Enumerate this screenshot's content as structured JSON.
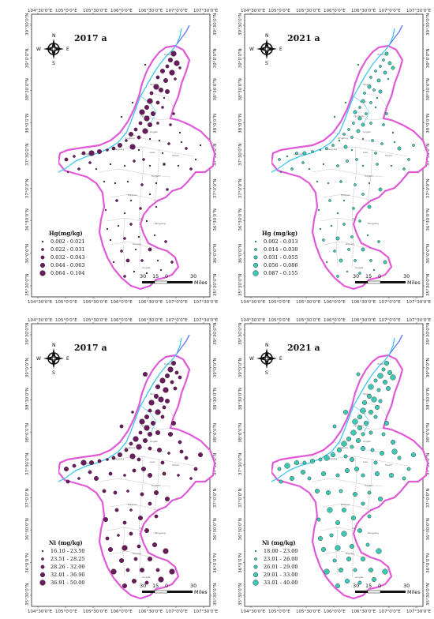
{
  "colors": {
    "y2017": "#6b1a5e",
    "y2021": "#3ec9b4",
    "outline": "#e05ad8",
    "river": "#3fc6f0",
    "county": "#888888"
  },
  "axes": {
    "top_lon_a": [
      "104°30'0\"E",
      "105°0'0\"E",
      "105°30'0\"E",
      "106°0'0\"E",
      "106°30'0\"E",
      "107°0'0\"E",
      "107°30'0\"E"
    ],
    "top_lon_b": [
      "104°30'0\"E",
      "105°0'0\"E",
      "105°30'0\"E",
      "106°0'0\"E",
      "106°30'0\"E",
      "107°0'0\"E",
      "107°30'0\"E"
    ],
    "lat": [
      "39°30'0\"N",
      "39°0'0\"N",
      "38°30'0\"N",
      "38°0'0\"N",
      "37°30'0\"N",
      "37°0'0\"N",
      "36°30'0\"N",
      "36°0'0\"N",
      "35°30'0\"N"
    ]
  },
  "compass": {
    "n": "N",
    "s": "S",
    "e": "E",
    "w": "W"
  },
  "scale": {
    "labels": [
      "30",
      "15",
      "0",
      "30"
    ],
    "unit": "Miles"
  },
  "panels": [
    {
      "id": "hg2017",
      "title": "2017 a",
      "legend_title": "Hg(mg/kg)",
      "year": "2017",
      "classes": [
        "0.002 - 0.021",
        "0.022 - 0.031",
        "0.032 - 0.043",
        "0.044 - 0.063",
        "0.064 - 0.104"
      ]
    },
    {
      "id": "hg2021",
      "title": "2021 a",
      "legend_title": "Hg (mg/kg)",
      "year": "2021",
      "classes": [
        "0.002 - 0.013",
        "0.014 - 0.030",
        "0.031 - 0.055",
        "0.056 - 0.086",
        "0.087 - 0.155"
      ]
    },
    {
      "id": "ni2017",
      "title": "2017 a",
      "legend_title": "Ni (mg/kg)",
      "year": "2017",
      "classes": [
        "16.10 - 23.50",
        "23.51 - 28.25",
        "28.26 - 32.00",
        "32.01 - 36.90",
        "36.91 - 50.00"
      ]
    },
    {
      "id": "ni2021",
      "title": "2021 a",
      "legend_title": "Ni (mg/kg)",
      "year": "2021",
      "classes": [
        "18.00 - 23.00",
        "23.01 - 26.00",
        "26.01 - 29.00",
        "29.01 - 33.00",
        "33.01 - 40.00"
      ]
    }
  ]
}
